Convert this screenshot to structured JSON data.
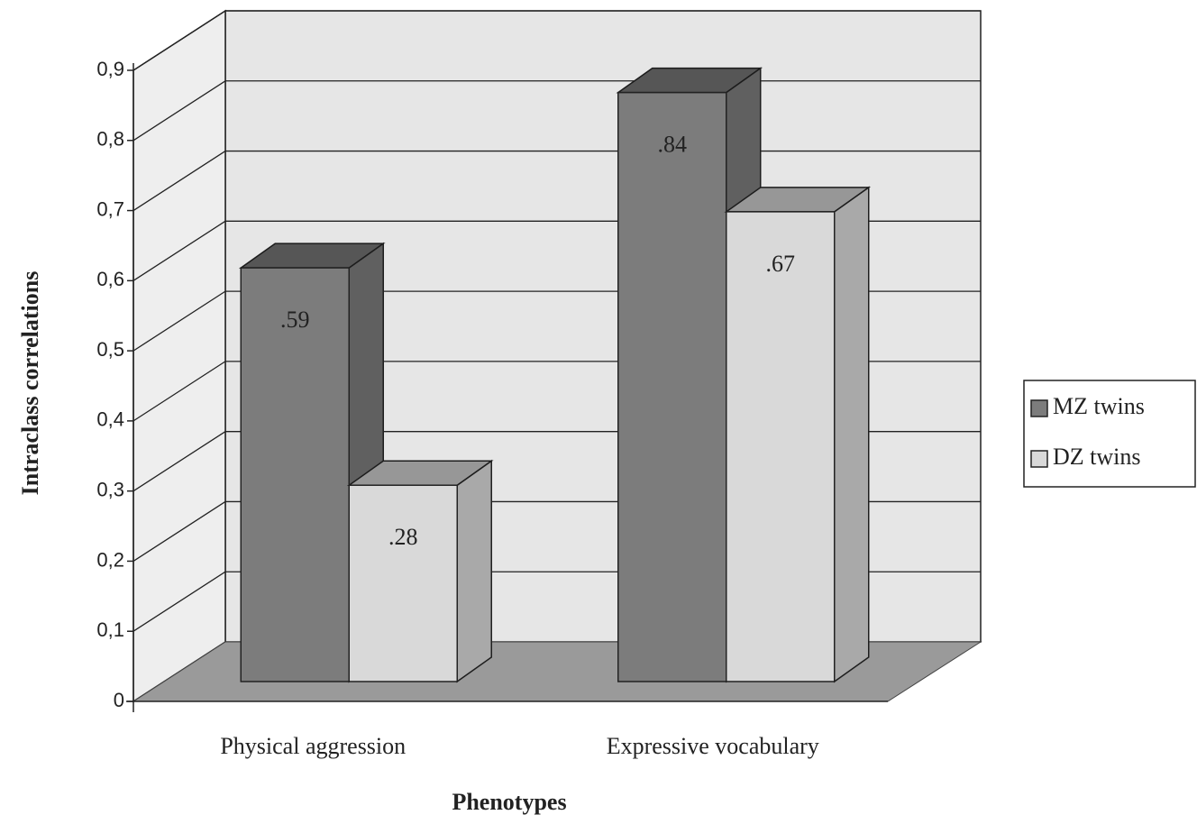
{
  "chart_data": {
    "type": "bar3d",
    "y_label": "Intraclass correlations",
    "x_label": "Phenotypes",
    "categories": [
      "Physical aggression",
      "Expressive vocabulary"
    ],
    "series": [
      {
        "name": "MZ twins",
        "color": "#7c7c7c",
        "values": [
          0.59,
          0.84
        ],
        "value_labels": [
          ".59",
          ".84"
        ]
      },
      {
        "name": "DZ twins",
        "color": "#d9d9d9",
        "values": [
          0.28,
          0.67
        ],
        "value_labels": [
          ".28",
          ".67"
        ]
      }
    ],
    "ylim": [
      0,
      0.9
    ],
    "yticks": [
      0,
      {
        "value": 0.1,
        "label": "0,1"
      },
      {
        "value": 0.2,
        "label": "0,2"
      },
      {
        "value": 0.3,
        "label": "0,3"
      },
      {
        "value": 0.4,
        "label": "0,4"
      },
      {
        "value": 0.5,
        "label": "0,5"
      },
      {
        "value": 0.6,
        "label": "0,6"
      },
      {
        "value": 0.7,
        "label": "0,7"
      },
      {
        "value": 0.8,
        "label": "0,8"
      },
      {
        "value": 0.9,
        "label": "0,9"
      }
    ],
    "grid": true,
    "legend": "right"
  }
}
